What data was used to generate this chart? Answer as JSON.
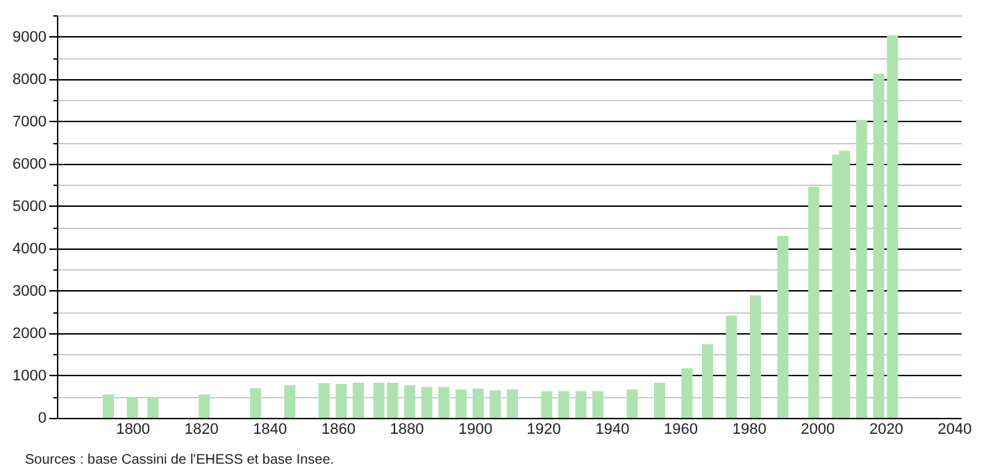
{
  "chart_data": {
    "type": "bar",
    "x": [
      1793,
      1800,
      1806,
      1821,
      1836,
      1846,
      1856,
      1861,
      1866,
      1872,
      1876,
      1881,
      1886,
      1891,
      1896,
      1901,
      1906,
      1911,
      1921,
      1926,
      1931,
      1936,
      1946,
      1954,
      1962,
      1968,
      1975,
      1982,
      1990,
      1999,
      2006,
      2008,
      2013,
      2018,
      2022
    ],
    "values": [
      550,
      480,
      470,
      550,
      700,
      770,
      820,
      800,
      830,
      830,
      830,
      770,
      730,
      730,
      670,
      690,
      650,
      670,
      630,
      630,
      630,
      630,
      670,
      830,
      1170,
      1740,
      2410,
      2890,
      4290,
      5450,
      6210,
      6300,
      7030,
      8120,
      9030
    ],
    "color": "#aee3b0",
    "xlim": [
      1780,
      2040
    ],
    "xticks": [
      1800,
      1820,
      1840,
      1860,
      1880,
      1900,
      1920,
      1940,
      1960,
      1980,
      2000,
      2020,
      2040
    ],
    "ylim": [
      0,
      9500
    ],
    "yticks": [
      0,
      {
        "value": 500,
        "label": null
      },
      1000,
      {
        "value": 1500,
        "label": null
      },
      2000,
      {
        "value": 2500,
        "label": null
      },
      3000,
      {
        "value": 3500,
        "label": null
      },
      4000,
      {
        "value": 4500,
        "label": null
      },
      5000,
      {
        "value": 5500,
        "label": null
      },
      6000,
      {
        "value": 6500,
        "label": null
      },
      7000,
      {
        "value": 7500,
        "label": null
      },
      8000,
      {
        "value": 8500,
        "label": null
      },
      9000,
      {
        "value": 9500,
        "label": null
      }
    ],
    "grid": "y",
    "annotations": [
      "Sources : base Cassini de l'EHESS et base Insee."
    ]
  }
}
